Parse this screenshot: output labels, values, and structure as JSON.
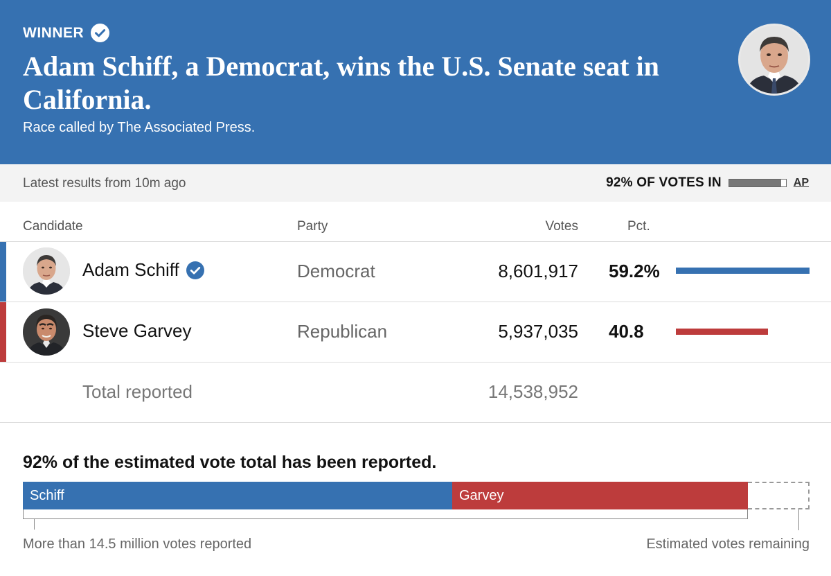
{
  "banner": {
    "winner_label": "WINNER",
    "headline": "Adam Schiff, a Democrat, wins the U.S. Senate seat in California.",
    "called_by": "Race called by The Associated Press.",
    "color": "#3671b1"
  },
  "status": {
    "latest": "Latest results from 10m ago",
    "votes_in": "92% OF VOTES IN",
    "votes_in_pct": 92,
    "ap": "AP"
  },
  "table": {
    "headers": {
      "candidate": "Candidate",
      "party": "Party",
      "votes": "Votes",
      "pct": "Pct."
    },
    "rows": [
      {
        "name": "Adam Schiff",
        "party": "Democrat",
        "votes": "8,601,917",
        "pct": "59.2%",
        "pct_value": 59.2,
        "winner": true,
        "color": "#3671b1"
      },
      {
        "name": "Steve Garvey",
        "party": "Republican",
        "votes": "5,937,035",
        "pct": "40.8",
        "pct_value": 40.8,
        "winner": false,
        "color": "#bd3c3c"
      }
    ],
    "total_label": "Total reported",
    "total_votes": "14,538,952"
  },
  "estimate": {
    "title": "92% of the estimated vote total has been reported.",
    "reported_pct": 92,
    "segments": [
      {
        "label": "Schiff",
        "share_pct": 54.6,
        "color": "#3671b1"
      },
      {
        "label": "Garvey",
        "share_pct": 37.6,
        "color": "#bd3c3c"
      }
    ],
    "left_caption": "More than 14.5 million votes reported",
    "right_caption": "Estimated votes remaining"
  }
}
